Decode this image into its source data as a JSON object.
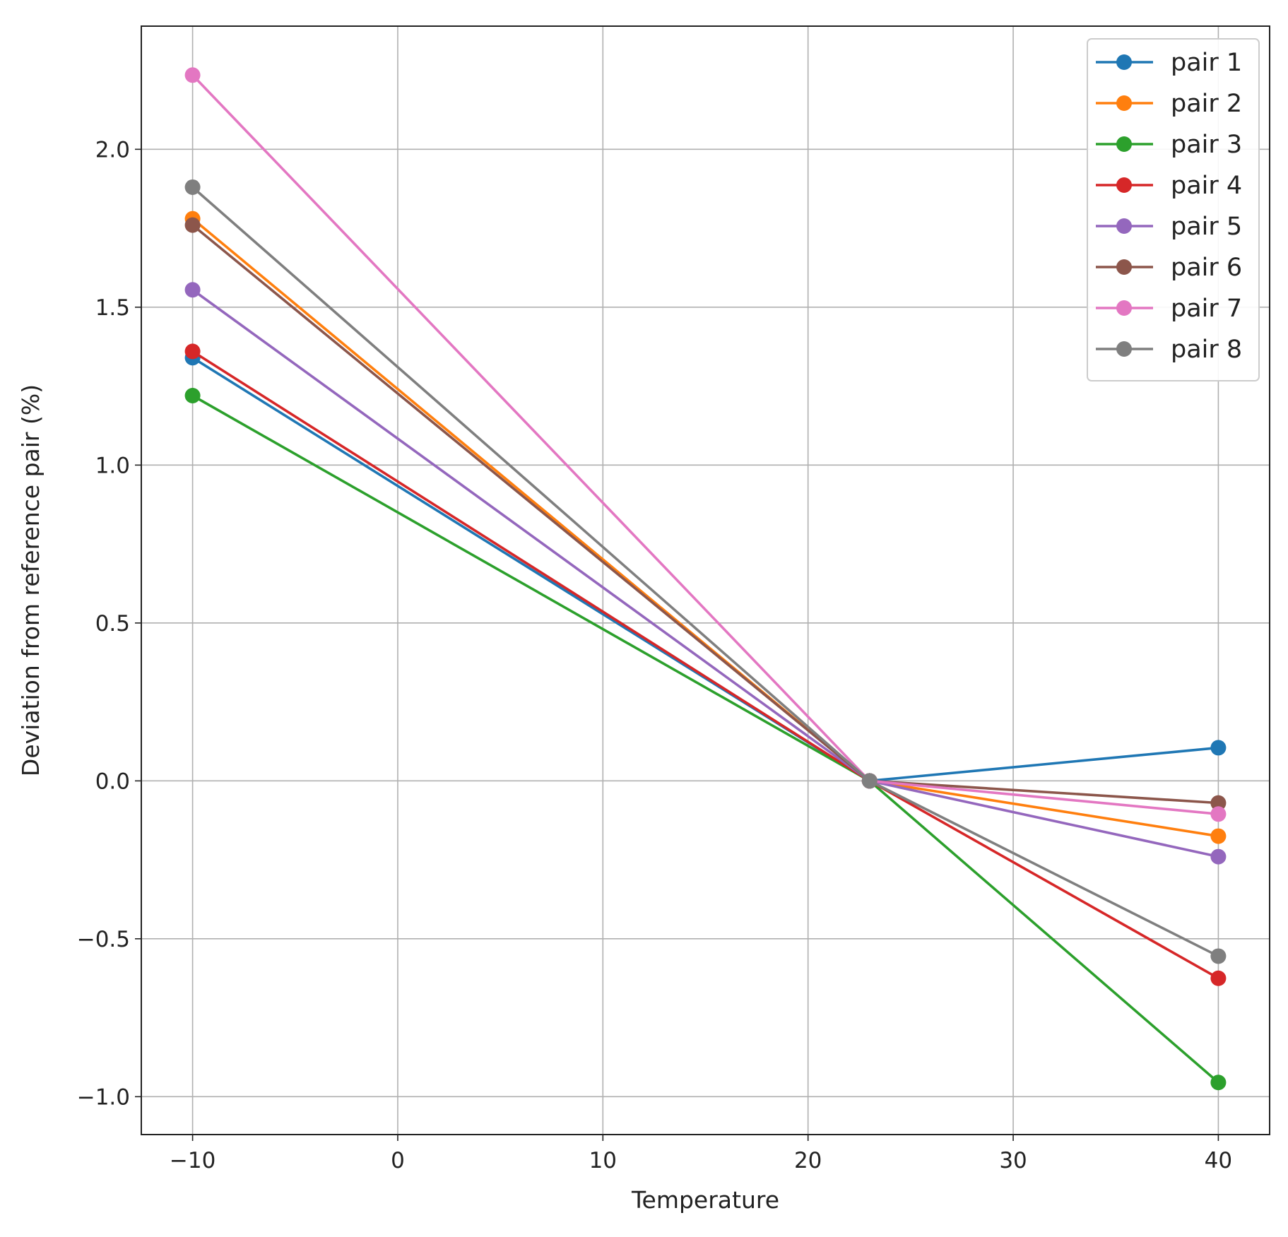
{
  "chart_data": {
    "type": "line",
    "title": "",
    "xlabel": "Temperature",
    "ylabel": "Deviation from reference pair (%)",
    "xlim": [
      -12.5,
      42.5
    ],
    "ylim": [
      -1.12,
      2.39
    ],
    "xticks": [
      -10,
      0,
      10,
      20,
      30,
      40
    ],
    "xtick_labels": [
      "−10",
      "0",
      "10",
      "20",
      "30",
      "40"
    ],
    "yticks": [
      -1.0,
      -0.5,
      0.0,
      0.5,
      1.0,
      1.5,
      2.0
    ],
    "ytick_labels": [
      "−1.0",
      "−0.5",
      "0.0",
      "0.5",
      "1.0",
      "1.5",
      "2.0"
    ],
    "grid": true,
    "legend_position": "top-right",
    "x": [
      -10,
      23,
      40
    ],
    "series": [
      {
        "name": "pair 1",
        "color": "#1f77b4",
        "values": [
          1.34,
          0.0,
          0.105
        ]
      },
      {
        "name": "pair 2",
        "color": "#ff7f0e",
        "values": [
          1.78,
          0.0,
          -0.175
        ]
      },
      {
        "name": "pair 3",
        "color": "#2ca02c",
        "values": [
          1.22,
          0.0,
          -0.955
        ]
      },
      {
        "name": "pair 4",
        "color": "#d62728",
        "values": [
          1.36,
          0.0,
          -0.625
        ]
      },
      {
        "name": "pair 5",
        "color": "#9467bd",
        "values": [
          1.555,
          0.0,
          -0.24
        ]
      },
      {
        "name": "pair 6",
        "color": "#8c564b",
        "values": [
          1.76,
          0.0,
          -0.07
        ]
      },
      {
        "name": "pair 7",
        "color": "#e377c2",
        "values": [
          2.235,
          0.0,
          -0.105
        ]
      },
      {
        "name": "pair 8",
        "color": "#7f7f7f",
        "values": [
          1.88,
          0.0,
          -0.555
        ]
      }
    ]
  }
}
